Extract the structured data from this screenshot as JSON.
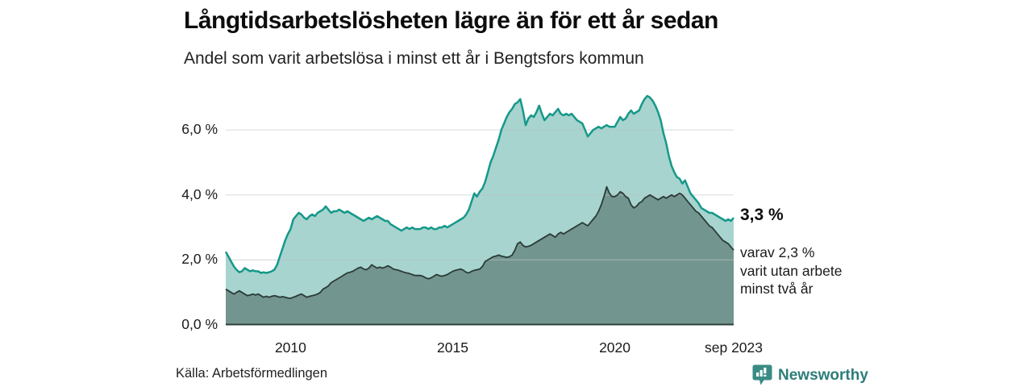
{
  "header": {
    "title": "Långtidsarbetslösheten lägre än för ett år sedan",
    "subtitle": "Andel som varit arbetslösa i minst ett år i Bengtsfors kommun"
  },
  "annotation": {
    "value_label": "3,3 %",
    "note_lines": {
      "l1": "varav 2,3 %",
      "l2": "varit utan arbete",
      "l3": "minst två år"
    }
  },
  "footer": {
    "source": "Källa: Arbetsförmedlingen",
    "brand": "Newsworthy"
  },
  "icons": {
    "logo": "newsworthy-speech-bubble-bar-chart"
  },
  "colors": {
    "brand_teal": "#2d7d78",
    "grid": "#e0e2e5",
    "baseline": "#2e3d39",
    "text": "#1a1a1a"
  },
  "chart_data": {
    "type": "area",
    "title": "Långtidsarbetslösheten lägre än för ett år sedan",
    "subtitle": "Andel som varit arbetslösa i minst ett år i Bengtsfors kommun",
    "unit": "%",
    "frequency": "monthly",
    "x_start": "2008-01",
    "x_end": "2023-09",
    "ylim": [
      0,
      7.3
    ],
    "grid": true,
    "yticks": [
      {
        "label": "0,0 %",
        "value": 0
      },
      {
        "label": "2,0 %",
        "value": 2
      },
      {
        "label": "4,0 %",
        "value": 4
      },
      {
        "label": "6,0 %",
        "value": 6
      }
    ],
    "xticks": [
      {
        "label": "2010",
        "month_index": 24
      },
      {
        "label": "2015",
        "month_index": 84
      },
      {
        "label": "2020",
        "month_index": 144
      },
      {
        "label": "sep 2023",
        "month_index": 188
      }
    ],
    "series": [
      {
        "name": "minst ett år",
        "end_label": "3,3 %",
        "line_color": "#16988a",
        "fill_color": "#a7d4ce",
        "line_width": 2.5,
        "values": [
          2.25,
          2.1,
          1.95,
          1.8,
          1.7,
          1.62,
          1.65,
          1.75,
          1.7,
          1.65,
          1.68,
          1.65,
          1.65,
          1.6,
          1.62,
          1.6,
          1.62,
          1.65,
          1.7,
          1.85,
          2.1,
          2.35,
          2.6,
          2.8,
          2.95,
          3.25,
          3.35,
          3.45,
          3.4,
          3.3,
          3.25,
          3.35,
          3.4,
          3.35,
          3.45,
          3.5,
          3.55,
          3.65,
          3.55,
          3.45,
          3.5,
          3.5,
          3.55,
          3.5,
          3.45,
          3.5,
          3.45,
          3.4,
          3.35,
          3.3,
          3.25,
          3.2,
          3.25,
          3.3,
          3.25,
          3.3,
          3.35,
          3.3,
          3.25,
          3.2,
          3.2,
          3.1,
          3.05,
          3.0,
          2.95,
          2.9,
          2.95,
          3.0,
          2.95,
          3.0,
          2.95,
          2.95,
          2.95,
          3.0,
          3.0,
          2.95,
          3.0,
          2.95,
          2.95,
          3.0,
          3.0,
          3.05,
          3.0,
          3.05,
          3.1,
          3.15,
          3.2,
          3.25,
          3.3,
          3.4,
          3.55,
          3.8,
          4.05,
          3.95,
          4.1,
          4.2,
          4.4,
          4.7,
          5.0,
          5.2,
          5.45,
          5.7,
          6.0,
          6.2,
          6.4,
          6.55,
          6.65,
          6.8,
          6.85,
          6.95,
          6.6,
          6.15,
          6.35,
          6.45,
          6.4,
          6.55,
          6.75,
          6.5,
          6.3,
          6.4,
          6.5,
          6.45,
          6.55,
          6.65,
          6.5,
          6.45,
          6.5,
          6.45,
          6.5,
          6.4,
          6.3,
          6.25,
          6.2,
          6.0,
          5.8,
          5.9,
          6.0,
          6.05,
          6.1,
          6.05,
          6.1,
          6.15,
          6.1,
          6.1,
          6.1,
          6.25,
          6.4,
          6.3,
          6.35,
          6.5,
          6.6,
          6.5,
          6.55,
          6.6,
          6.8,
          6.95,
          7.05,
          7.0,
          6.9,
          6.75,
          6.55,
          6.3,
          5.9,
          5.6,
          5.2,
          4.9,
          4.7,
          4.55,
          4.5,
          4.35,
          4.45,
          4.25,
          4.05,
          3.95,
          3.85,
          3.75,
          3.6,
          3.55,
          3.5,
          3.45,
          3.45,
          3.4,
          3.35,
          3.3,
          3.25,
          3.2,
          3.25,
          3.2,
          3.3
        ]
      },
      {
        "name": "minst två år",
        "end_label": "2,3 %",
        "line_color": "#2b3a37",
        "fill_color": "#72968f",
        "line_width": 1.8,
        "values": [
          1.1,
          1.05,
          1.0,
          0.95,
          1.0,
          1.05,
          1.0,
          0.95,
          0.9,
          0.92,
          0.95,
          0.92,
          0.95,
          0.9,
          0.85,
          0.88,
          0.85,
          0.88,
          0.9,
          0.88,
          0.85,
          0.87,
          0.85,
          0.83,
          0.82,
          0.85,
          0.88,
          0.92,
          0.95,
          0.9,
          0.85,
          0.88,
          0.9,
          0.92,
          0.95,
          1.0,
          1.1,
          1.15,
          1.2,
          1.3,
          1.35,
          1.4,
          1.45,
          1.5,
          1.55,
          1.6,
          1.62,
          1.65,
          1.7,
          1.75,
          1.78,
          1.72,
          1.7,
          1.75,
          1.85,
          1.8,
          1.75,
          1.78,
          1.75,
          1.78,
          1.82,
          1.78,
          1.72,
          1.7,
          1.68,
          1.65,
          1.62,
          1.6,
          1.58,
          1.55,
          1.52,
          1.52,
          1.52,
          1.5,
          1.45,
          1.42,
          1.45,
          1.5,
          1.55,
          1.52,
          1.5,
          1.52,
          1.55,
          1.6,
          1.65,
          1.68,
          1.7,
          1.72,
          1.68,
          1.62,
          1.6,
          1.65,
          1.68,
          1.7,
          1.72,
          1.8,
          1.95,
          2.0,
          2.05,
          2.1,
          2.12,
          2.15,
          2.12,
          2.1,
          2.08,
          2.1,
          2.15,
          2.3,
          2.5,
          2.55,
          2.45,
          2.4,
          2.42,
          2.45,
          2.5,
          2.55,
          2.6,
          2.65,
          2.7,
          2.75,
          2.8,
          2.75,
          2.7,
          2.8,
          2.85,
          2.8,
          2.85,
          2.9,
          2.95,
          3.0,
          3.05,
          3.1,
          3.15,
          3.1,
          3.05,
          3.15,
          3.25,
          3.35,
          3.5,
          3.7,
          3.95,
          4.25,
          4.05,
          3.95,
          3.95,
          4.0,
          4.1,
          4.05,
          3.95,
          3.9,
          3.7,
          3.6,
          3.65,
          3.75,
          3.8,
          3.9,
          3.95,
          4.0,
          3.95,
          3.9,
          3.85,
          3.9,
          3.95,
          3.9,
          3.95,
          4.0,
          3.95,
          4.0,
          4.05,
          4.0,
          3.9,
          3.8,
          3.7,
          3.6,
          3.5,
          3.45,
          3.35,
          3.25,
          3.15,
          3.05,
          3.0,
          2.9,
          2.8,
          2.7,
          2.6,
          2.55,
          2.5,
          2.4,
          2.3
        ]
      }
    ]
  }
}
